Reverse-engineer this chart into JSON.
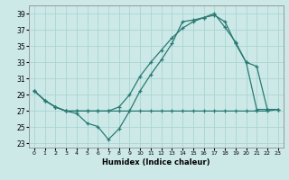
{
  "xlabel": "Humidex (Indice chaleur)",
  "bg_color": "#cce9e8",
  "grid_color": "#aad4d3",
  "line_color": "#2a7a72",
  "xlim": [
    -0.5,
    23.5
  ],
  "ylim": [
    22.5,
    40.0
  ],
  "xticks": [
    0,
    1,
    2,
    3,
    4,
    5,
    6,
    7,
    8,
    9,
    10,
    11,
    12,
    13,
    14,
    15,
    16,
    17,
    18,
    19,
    20,
    21,
    22,
    23
  ],
  "yticks": [
    23,
    25,
    27,
    29,
    31,
    33,
    35,
    37,
    39
  ],
  "line1_x": [
    0,
    1,
    2,
    3,
    4,
    5,
    6,
    7,
    8,
    9,
    10,
    11,
    12,
    13,
    14,
    15,
    16,
    17,
    18,
    19,
    20,
    21,
    22
  ],
  "line1_y": [
    29.5,
    28.3,
    27.5,
    27.0,
    26.7,
    25.5,
    25.1,
    23.5,
    24.8,
    27.0,
    29.5,
    31.5,
    33.3,
    35.3,
    38.0,
    38.2,
    38.5,
    38.8,
    38.0,
    35.3,
    33.0,
    32.5,
    27.2
  ],
  "line2_x": [
    0,
    1,
    2,
    3,
    4,
    5,
    6,
    7,
    8,
    9,
    10,
    11,
    12,
    13,
    14,
    15,
    16,
    17,
    18,
    19,
    20,
    21,
    22,
    23
  ],
  "line2_y": [
    29.5,
    28.3,
    27.5,
    27.0,
    27.0,
    27.0,
    27.0,
    27.0,
    27.0,
    27.0,
    27.0,
    27.0,
    27.0,
    27.0,
    27.0,
    27.0,
    27.0,
    27.0,
    27.0,
    27.0,
    27.0,
    27.0,
    27.0,
    27.2
  ],
  "line3_x": [
    0,
    1,
    2,
    3,
    4,
    5,
    6,
    7,
    8,
    9,
    10,
    11,
    12,
    13,
    14,
    15,
    16,
    17,
    18,
    19,
    20,
    21,
    22,
    23
  ],
  "line3_y": [
    29.5,
    28.3,
    27.5,
    27.0,
    27.0,
    27.0,
    27.0,
    27.0,
    27.5,
    29.0,
    31.3,
    33.0,
    34.5,
    36.0,
    37.2,
    38.0,
    38.5,
    39.0,
    37.3,
    35.5,
    33.0,
    27.2,
    27.2,
    27.2
  ]
}
